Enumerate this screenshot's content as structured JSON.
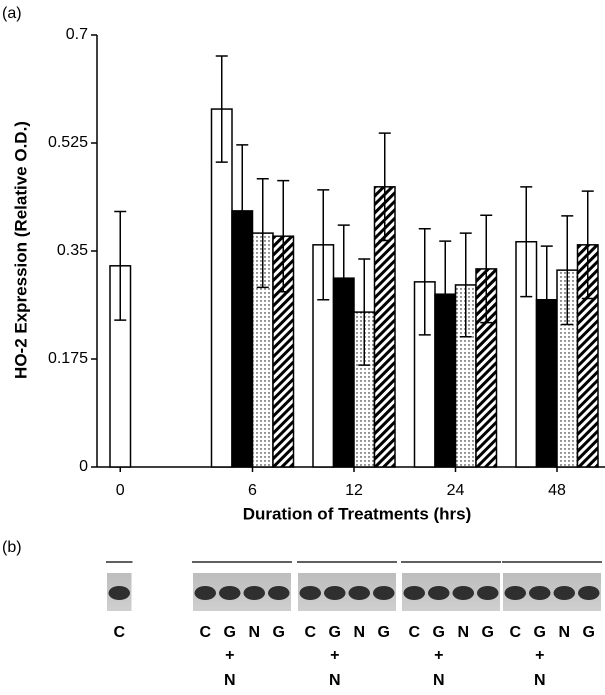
{
  "chart_data": {
    "type": "bar",
    "panel_label": "(a)",
    "y_label": "HO-2 Expression (Relative O.D.)",
    "x_label": "Duration of Treatments (hrs)",
    "categories": [
      "0",
      "6",
      "12",
      "24",
      "48"
    ],
    "ylim": [
      0,
      0.7
    ],
    "yticks": [
      0,
      0.175,
      0.35,
      0.525,
      0.7
    ],
    "series": [
      {
        "pattern": "white",
        "values": [
          0.326,
          0.58,
          0.36,
          0.3,
          0.365
        ],
        "errors": [
          0.088,
          0.086,
          0.089,
          0.086,
          0.089
        ]
      },
      {
        "pattern": "black",
        "values": [
          null,
          0.415,
          0.306,
          0.28,
          0.271
        ],
        "errors": [
          null,
          0.107,
          0.086,
          0.086,
          0.087
        ]
      },
      {
        "pattern": "dots",
        "values": [
          null,
          0.379,
          0.251,
          0.295,
          0.319
        ],
        "errors": [
          null,
          0.088,
          0.086,
          0.084,
          0.088
        ]
      },
      {
        "pattern": "hatch",
        "values": [
          null,
          0.374,
          0.454,
          0.321,
          0.36
        ],
        "errors": [
          null,
          0.09,
          0.087,
          0.087,
          0.087
        ]
      }
    ]
  },
  "blot": {
    "panel_label": "(b)",
    "groups": [
      {
        "lanes": [
          "C"
        ]
      },
      {
        "lanes": [
          "C",
          "G",
          "N",
          "G"
        ],
        "combo": [
          "+",
          "N"
        ]
      },
      {
        "lanes": [
          "C",
          "G",
          "N",
          "G"
        ],
        "combo": [
          "+",
          "N"
        ]
      },
      {
        "lanes": [
          "C",
          "G",
          "N",
          "G"
        ],
        "combo": [
          "+",
          "N"
        ]
      },
      {
        "lanes": [
          "C",
          "G",
          "N",
          "G"
        ],
        "combo": [
          "+",
          "N"
        ]
      }
    ]
  }
}
